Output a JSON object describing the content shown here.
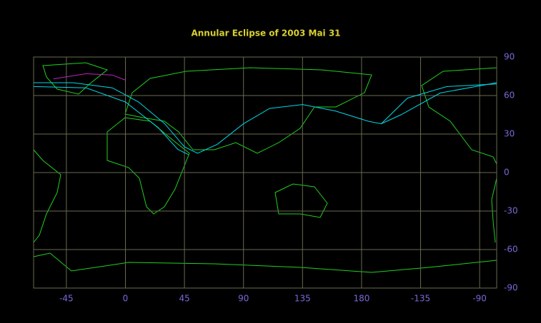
{
  "chart_data": {
    "type": "map",
    "title": "Annular Eclipse of 2003 Mai 31",
    "xlim": [
      -70,
      283
    ],
    "ylim": [
      -90,
      90
    ],
    "xticks": [
      -45,
      0,
      45,
      90,
      135,
      180,
      {
        "value": 225,
        "label": "-135"
      },
      {
        "value": 270,
        "label": "-90"
      }
    ],
    "yticks": [
      90,
      60,
      30,
      0,
      -30,
      -60,
      -90
    ],
    "grid": true,
    "series": [
      {
        "color": "#00d8e8",
        "x": [
          -70,
          -40,
          -10,
          10,
          30,
          45,
          55,
          70,
          90,
          110,
          135,
          160,
          185,
          195,
          210,
          240,
          283
        ],
        "y": [
          70,
          70,
          66,
          55,
          38,
          20,
          15,
          22,
          38,
          50,
          53,
          48,
          40,
          38,
          45,
          62,
          70
        ]
      },
      {
        "color": "#00d8e8",
        "x": [
          -70,
          -30,
          0,
          25,
          40,
          48
        ],
        "y": [
          67,
          66,
          55,
          35,
          18,
          14
        ]
      },
      {
        "color": "#00d8e8",
        "x": [
          195,
          215,
          245,
          283
        ],
        "y": [
          38,
          58,
          67,
          69
        ]
      },
      {
        "color": "#c020c0",
        "x": [
          -55,
          -30,
          -10,
          0
        ],
        "y": [
          73,
          77,
          76,
          72
        ]
      }
    ]
  }
}
